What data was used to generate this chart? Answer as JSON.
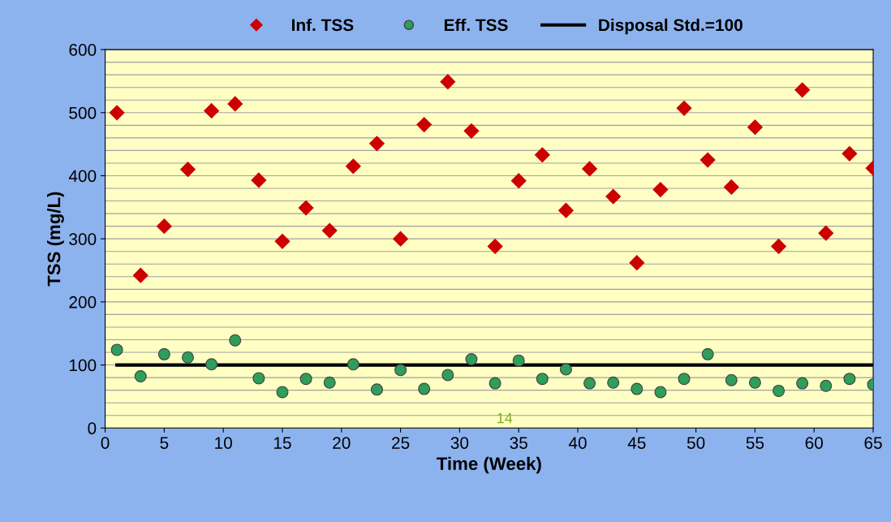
{
  "chart_data": {
    "type": "scatter",
    "xlabel": "Time (Week)",
    "ylabel": "TSS (mg/L)",
    "xlim": [
      0,
      65
    ],
    "xticks": [
      0,
      5,
      10,
      15,
      20,
      25,
      30,
      35,
      40,
      45,
      50,
      55,
      60,
      65
    ],
    "ylim": [
      0,
      600
    ],
    "yticks": [
      0,
      100,
      200,
      300,
      400,
      500,
      600
    ],
    "grid": "y",
    "legend": "top",
    "x": [
      1,
      3,
      5,
      7,
      9,
      11,
      13,
      15,
      17,
      19,
      21,
      23,
      25,
      27,
      29,
      31,
      33,
      35,
      37,
      39,
      41,
      43,
      45,
      47,
      49,
      51,
      53,
      55,
      57,
      59,
      61,
      63,
      65
    ],
    "series": [
      {
        "name": "Inf. TSS",
        "marker": "diamond",
        "color": "#cc0000",
        "values": [
          500,
          242,
          320,
          410,
          503,
          514,
          393,
          296,
          349,
          313,
          415,
          451,
          300,
          481,
          549,
          471,
          288,
          392,
          433,
          345,
          411,
          367,
          262,
          378,
          507,
          425,
          382,
          477,
          288,
          536,
          309,
          435,
          412
        ]
      },
      {
        "name": "Eff. TSS",
        "marker": "circle",
        "color": "#2e9e5a",
        "values": [
          124,
          82,
          117,
          112,
          101,
          139,
          79,
          57,
          78,
          72,
          101,
          61,
          92,
          62,
          84,
          109,
          71,
          107,
          78,
          93,
          71,
          72,
          62,
          57,
          78,
          117,
          76,
          72,
          59,
          71,
          67,
          78,
          69
        ]
      },
      {
        "name": "Disposal Std.=100",
        "type": "line",
        "marker": "none",
        "color": "#000000",
        "x": [
          1,
          65
        ],
        "values": [
          100,
          100
        ]
      }
    ],
    "annotations": [
      "14"
    ]
  }
}
